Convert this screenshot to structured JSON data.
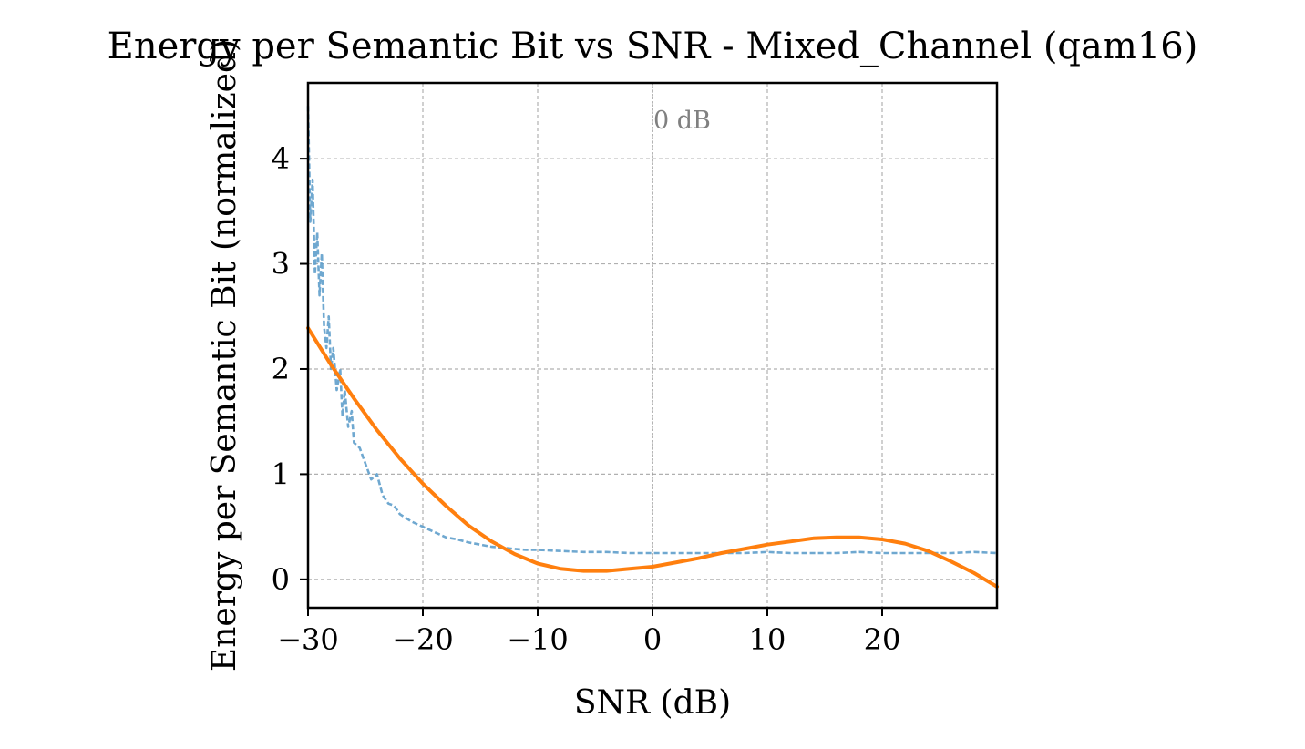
{
  "chart_data": {
    "type": "line",
    "title": "Energy per Semantic Bit vs SNR - Mixed_Channel (qam16)",
    "xlabel": "SNR (dB)",
    "ylabel": "Energy per Semantic Bit (normalized)",
    "xlim": [
      -30,
      30
    ],
    "ylim": [
      -0.27,
      4.72
    ],
    "xticks": [
      -30,
      -20,
      -10,
      0,
      10,
      20
    ],
    "xtick_labels": [
      "−30",
      "−20",
      "−10",
      "0",
      "10",
      "20"
    ],
    "yticks": [
      0,
      1,
      2,
      3,
      4
    ],
    "ytick_labels": [
      "0",
      "1",
      "2",
      "3",
      "4"
    ],
    "grid": true,
    "vertical_reference": {
      "x": 0,
      "label": "0 dB"
    },
    "series": [
      {
        "style": "dashed",
        "color": "#5f9ecb",
        "x": [
          -30,
          -29.8,
          -29.6,
          -29.4,
          -29.2,
          -29.0,
          -28.8,
          -28.6,
          -28.4,
          -28.2,
          -28.0,
          -27.8,
          -27.5,
          -27.2,
          -27.0,
          -26.8,
          -26.5,
          -26.2,
          -26.0,
          -25.5,
          -25.0,
          -24.5,
          -24.0,
          -23.5,
          -23.0,
          -22.5,
          -22.0,
          -21.0,
          -20.0,
          -19.0,
          -18.0,
          -17.0,
          -16.0,
          -15.0,
          -14.0,
          -13.0,
          -12.0,
          -11.0,
          -10.0,
          -8.0,
          -6.0,
          -4.0,
          -2.0,
          0.0,
          2.0,
          4.0,
          6.0,
          8.0,
          10.0,
          12.0,
          14.0,
          16.0,
          18.0,
          20.0,
          22.0,
          24.0,
          26.0,
          28.0,
          30.0
        ],
        "y": [
          4.5,
          3.4,
          3.8,
          2.9,
          3.3,
          2.7,
          3.1,
          2.4,
          2.2,
          2.5,
          2.0,
          2.2,
          1.8,
          2.0,
          1.55,
          1.8,
          1.45,
          1.6,
          1.3,
          1.25,
          1.1,
          0.95,
          1.0,
          0.8,
          0.72,
          0.7,
          0.62,
          0.55,
          0.5,
          0.45,
          0.4,
          0.38,
          0.35,
          0.33,
          0.31,
          0.3,
          0.29,
          0.28,
          0.28,
          0.27,
          0.26,
          0.26,
          0.25,
          0.25,
          0.25,
          0.25,
          0.25,
          0.25,
          0.26,
          0.25,
          0.25,
          0.25,
          0.26,
          0.25,
          0.25,
          0.25,
          0.25,
          0.26,
          0.25
        ]
      },
      {
        "style": "solid",
        "color": "#ff7f0e",
        "x": [
          -30,
          -28,
          -26,
          -24,
          -22,
          -20,
          -18,
          -16,
          -14,
          -12,
          -10,
          -8,
          -6,
          -4,
          -2,
          0,
          2,
          4,
          6,
          8,
          10,
          12,
          14,
          16,
          18,
          20,
          22,
          24,
          26,
          28,
          30
        ],
        "y": [
          2.39,
          2.04,
          1.72,
          1.42,
          1.15,
          0.91,
          0.7,
          0.51,
          0.36,
          0.24,
          0.15,
          0.1,
          0.08,
          0.08,
          0.1,
          0.12,
          0.16,
          0.2,
          0.25,
          0.29,
          0.33,
          0.36,
          0.39,
          0.4,
          0.4,
          0.38,
          0.34,
          0.27,
          0.17,
          0.06,
          -0.07
        ]
      }
    ]
  }
}
